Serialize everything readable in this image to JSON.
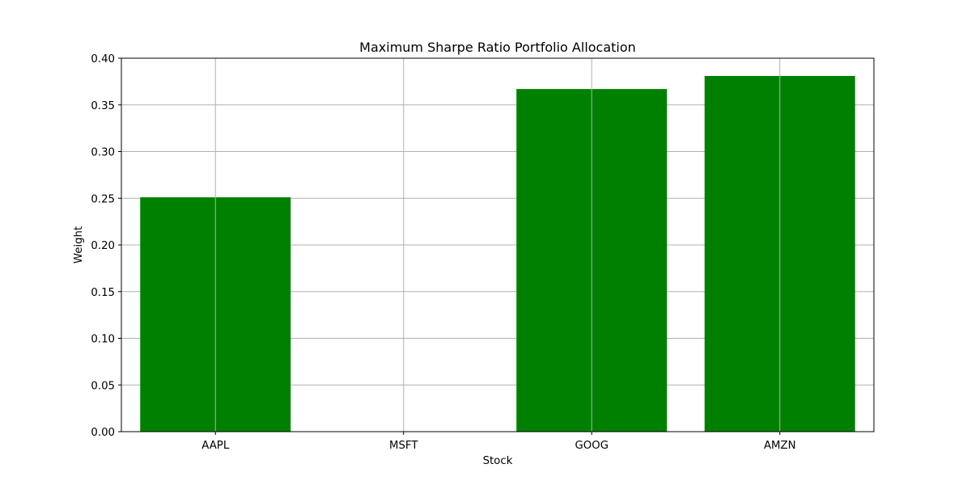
{
  "chart_data": {
    "type": "bar",
    "title": "Maximum Sharpe Ratio Portfolio Allocation",
    "xlabel": "Stock",
    "ylabel": "Weight",
    "categories": [
      "AAPL",
      "MSFT",
      "GOOG",
      "AMZN"
    ],
    "values": [
      0.251,
      0.0,
      0.367,
      0.381
    ],
    "ylim": [
      0,
      0.4
    ],
    "yticks": [
      "0.00",
      "0.05",
      "0.10",
      "0.15",
      "0.20",
      "0.25",
      "0.30",
      "0.35",
      "0.40"
    ],
    "grid": true,
    "bar_color": "#008000",
    "grid_color": "#b0b0b0"
  }
}
